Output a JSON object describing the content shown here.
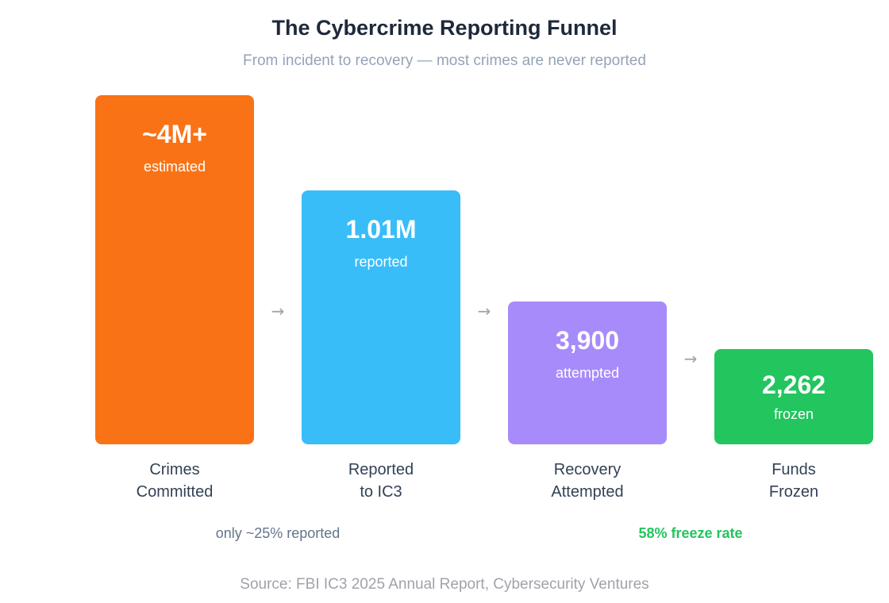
{
  "title": "The Cybercrime Reporting Funnel",
  "subtitle": "From incident to recovery — most crimes are never reported",
  "source": "Source: FBI IC3 2025 Annual Report, Cybersecurity Ventures",
  "notes": {
    "reported_share": "only ~25% reported",
    "freeze_rate": "58% freeze rate"
  },
  "colors": {
    "crimes": "#f97316",
    "reported": "#38bdf8",
    "attempted": "#a78bfa",
    "frozen": "#22c55e",
    "freeze_note": "#22c55e"
  },
  "chart_data": {
    "type": "bar",
    "title": "The Cybercrime Reporting Funnel",
    "subtitle": "From incident to recovery — most crimes are never reported",
    "categories": [
      "Crimes\nCommitted",
      "Reported\nto IC3",
      "Recovery\nAttempted",
      "Funds\nFrozen"
    ],
    "stages": [
      {
        "label_line1": "Crimes",
        "label_line2": "Committed",
        "display_value": "~4M+",
        "unit": "estimated",
        "value": 4000000
      },
      {
        "label_line1": "Reported",
        "label_line2": "to IC3",
        "display_value": "1.01M",
        "unit": "reported",
        "value": 1010000
      },
      {
        "label_line1": "Recovery",
        "label_line2": "Attempted",
        "display_value": "3,900",
        "unit": "attempted",
        "value": 3900
      },
      {
        "label_line1": "Funds",
        "label_line2": "Frozen",
        "display_value": "2,262",
        "unit": "frozen",
        "value": 2262
      }
    ],
    "grid": false,
    "legend": "none"
  }
}
